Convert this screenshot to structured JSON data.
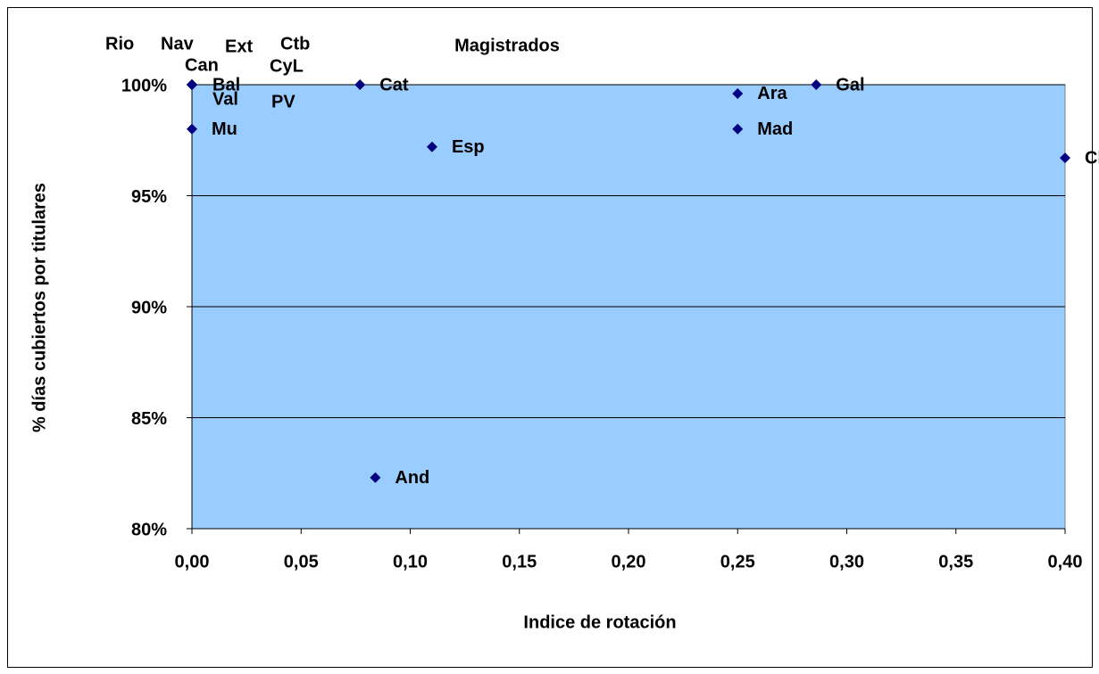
{
  "chart_data": {
    "type": "scatter",
    "title": "Magistrados",
    "x_label": "Indice de rotación",
    "y_label": "% días cubiertos por titulares",
    "color": "#000080",
    "plot_background": "#99ccff",
    "grid": true,
    "points": [
      {
        "label": "Rio",
        "x": 0,
        "y": 100
      },
      {
        "label": "Nav",
        "x": 0,
        "y": 100
      },
      {
        "label": "Ext",
        "x": 0,
        "y": 100
      },
      {
        "label": "Ctb",
        "x": 0,
        "y": 100
      },
      {
        "label": "Can",
        "x": 0,
        "y": 100
      },
      {
        "label": "CyL",
        "x": 0,
        "y": 100
      },
      {
        "label": "Bal",
        "x": 0,
        "y": 100
      },
      {
        "label": "Val",
        "x": 0,
        "y": 100
      },
      {
        "label": "PV",
        "x": 0,
        "y": 100
      },
      {
        "label": "Mu",
        "x": 0,
        "y": 98
      },
      {
        "label": "Cat",
        "x": 0.077,
        "y": 100
      },
      {
        "label": "Esp",
        "x": 0.11,
        "y": 97.2
      },
      {
        "label": "And",
        "x": 0.084,
        "y": 82.3
      },
      {
        "label": "Ara",
        "x": 0.25,
        "y": 99.6
      },
      {
        "label": "Mad",
        "x": 0.25,
        "y": 98
      },
      {
        "label": "Gal",
        "x": 0.286,
        "y": 100
      },
      {
        "label": "CM",
        "x": 0.4,
        "y": 96.7
      }
    ],
    "xlim": [
      0,
      0.4
    ],
    "xticks": [
      {
        "value": 0,
        "label": "0,00"
      },
      {
        "value": 0.05,
        "label": "0,05"
      },
      {
        "value": 0.1,
        "label": "0,10"
      },
      {
        "value": 0.15,
        "label": "0,15"
      },
      {
        "value": 0.2,
        "label": "0,20"
      },
      {
        "value": 0.25,
        "label": "0,25"
      },
      {
        "value": 0.3,
        "label": "0,30"
      },
      {
        "value": 0.35,
        "label": "0,35"
      },
      {
        "value": 0.4,
        "label": "0,40"
      }
    ],
    "ylim": [
      80,
      100
    ],
    "yticks": [
      {
        "value": 80,
        "label": "80%"
      },
      {
        "value": 85,
        "label": "85%"
      },
      {
        "value": 90,
        "label": "90%"
      },
      {
        "value": 95,
        "label": "95%"
      },
      {
        "value": 100,
        "label": "100%"
      }
    ]
  }
}
